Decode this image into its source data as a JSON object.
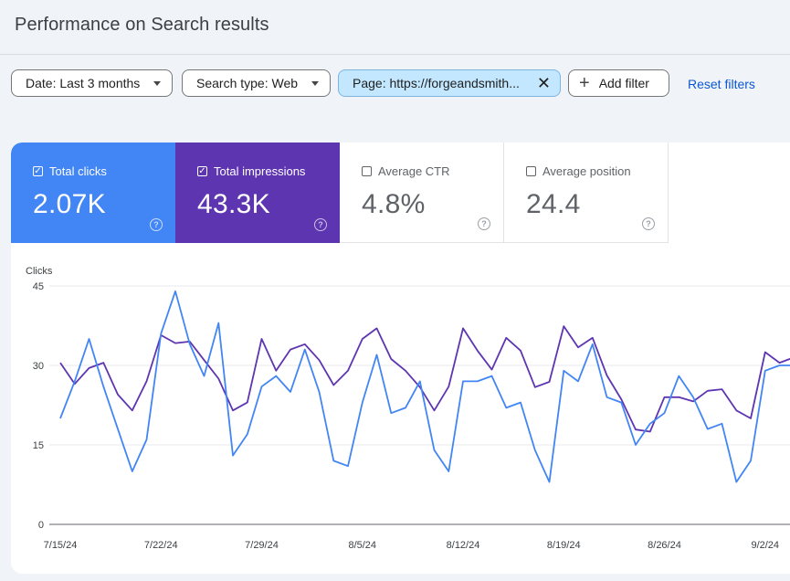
{
  "page": {
    "title": "Performance on Search results"
  },
  "filters": {
    "date_label": "Date: Last 3 months",
    "search_type_label": "Search type: Web",
    "page_label": "Page: https://forgeandsmith...",
    "add_filter_label": "Add filter",
    "reset_label": "Reset filters"
  },
  "metrics": [
    {
      "label": "Total clicks",
      "value": "2.07K",
      "checked": true,
      "color": "#4285f4"
    },
    {
      "label": "Total impressions",
      "value": "43.3K",
      "checked": true,
      "color": "#5e35b1"
    },
    {
      "label": "Average CTR",
      "value": "4.8%",
      "checked": false
    },
    {
      "label": "Average position",
      "value": "24.4",
      "checked": false
    }
  ],
  "chart_data": {
    "type": "line",
    "ylabel": "Clicks",
    "ylim": [
      0,
      45
    ],
    "yticks": [
      "0",
      "15",
      "30",
      "45"
    ],
    "xlabels": [
      "7/15/24",
      "7/22/24",
      "7/29/24",
      "8/5/24",
      "8/12/24",
      "8/19/24",
      "8/26/24",
      "9/2/24"
    ],
    "grid": true,
    "series": [
      {
        "name": "Total clicks",
        "color": "#4285f4",
        "values": [
          20,
          27,
          35,
          26,
          18,
          10,
          16,
          36,
          44,
          34,
          28,
          38,
          13,
          17,
          26,
          28,
          25,
          33,
          25,
          12,
          11,
          23,
          32,
          21,
          22,
          27,
          14,
          10,
          27,
          27,
          28,
          22,
          23,
          14,
          8,
          29,
          27,
          34,
          24,
          23,
          15,
          19,
          21,
          28,
          24,
          18,
          19,
          8,
          12,
          29,
          30,
          30
        ]
      },
      {
        "name": "Total impressions",
        "color": "#5e35b1",
        "values": [
          30.5,
          26.5,
          29.5,
          30.5,
          24.5,
          21.5,
          27,
          35.7,
          34.2,
          34.5,
          31,
          27.5,
          21.5,
          23,
          35,
          29,
          33,
          34,
          31,
          26.3,
          29,
          35,
          37,
          31.2,
          29,
          25.9,
          21.5,
          26,
          37,
          32.8,
          29.2,
          35.2,
          32.8,
          25.9,
          26.9,
          37.4,
          33.4,
          35.2,
          28.1,
          23.6,
          17.9,
          17.5,
          24,
          24,
          23.2,
          25.2,
          25.5,
          21.5,
          20,
          32.5,
          30.5,
          31.5
        ]
      }
    ]
  }
}
